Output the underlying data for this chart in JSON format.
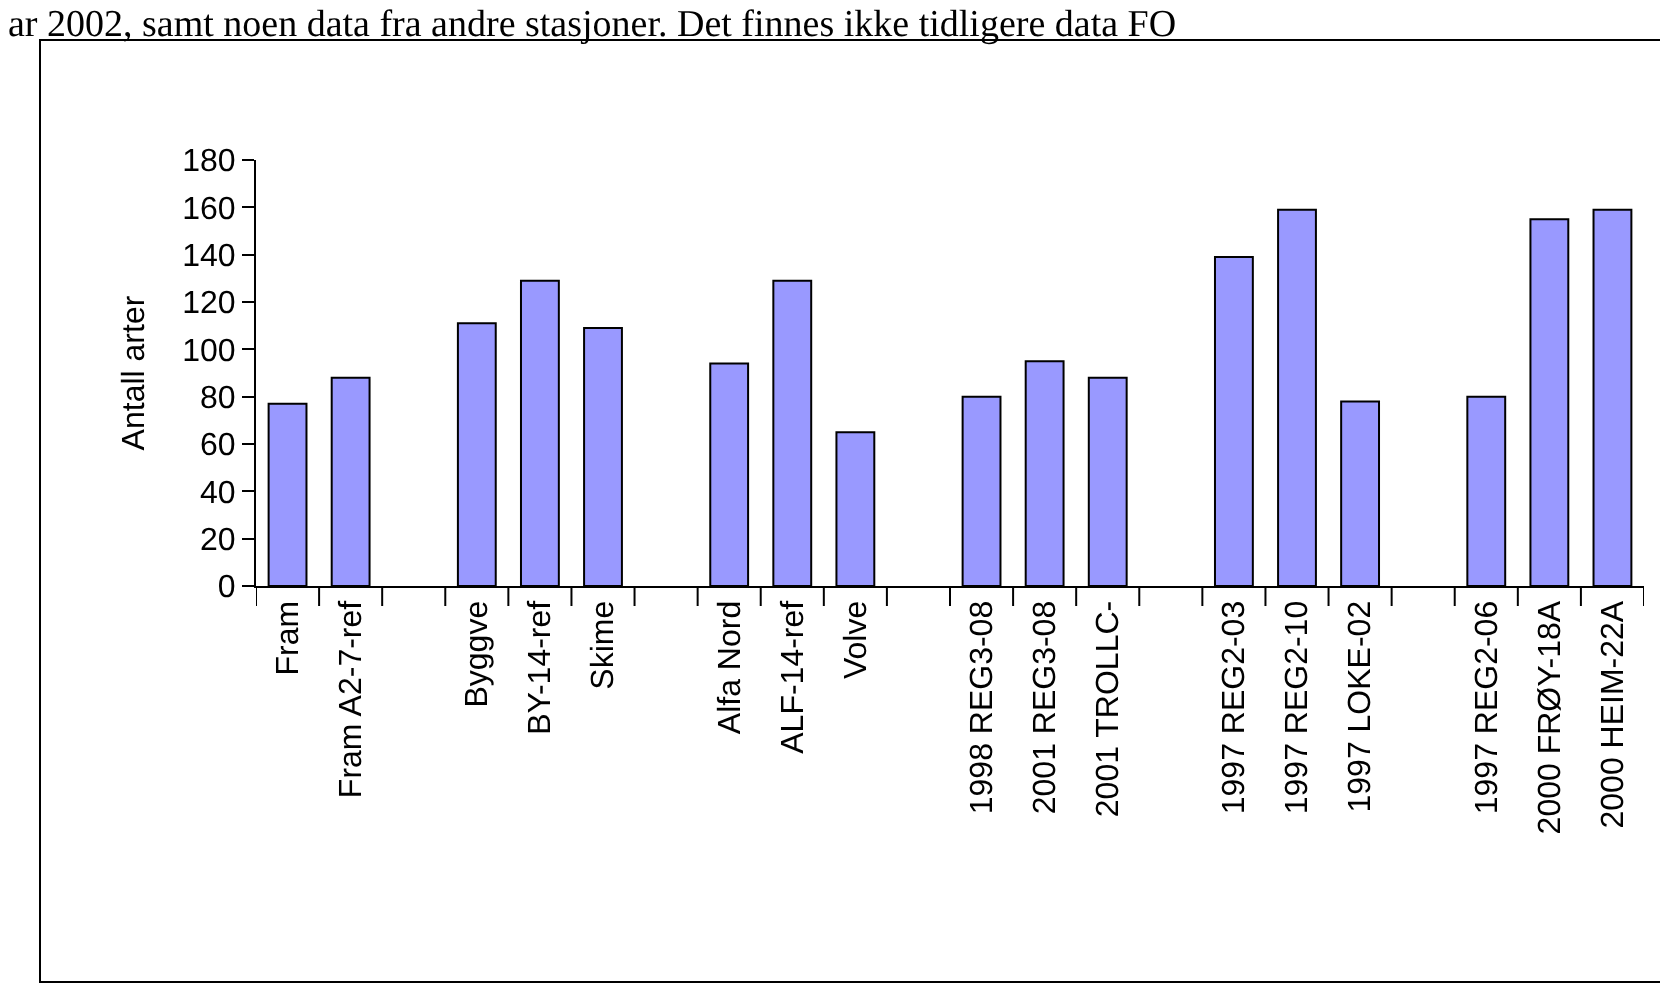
{
  "chart_data": {
    "type": "bar",
    "categories": [
      "Fram",
      "Fram A2-7-ref",
      null,
      "Byggve",
      "BY-14-ref",
      "Skime",
      null,
      "Alfa Nord",
      "ALF-14-ref",
      "Volve",
      null,
      "1998 REG3-08",
      "2001 REG3-08",
      "2001 TROLLC-",
      null,
      "1997 REG2-03",
      "1997 REG2-10",
      "1997 LOKE-02",
      null,
      "1997 REG2-06",
      "2000 FRØY-18A",
      "2000 HEIM-22A"
    ],
    "values": [
      77,
      88,
      null,
      111,
      129,
      109,
      null,
      94,
      129,
      65,
      null,
      80,
      95,
      88,
      null,
      139,
      159,
      78,
      null,
      80,
      155,
      159
    ],
    "color": "#9999ff",
    "ylabel": "Antall arter",
    "ylim": [
      0,
      180
    ],
    "yticks": [
      0,
      20,
      40,
      60,
      80,
      100,
      120,
      140,
      160,
      180
    ],
    "grid": false,
    "annotations": [
      "ar 2002, samt noen data fra andre stasjoner. Det finnes ikke tidligere data FO"
    ]
  }
}
